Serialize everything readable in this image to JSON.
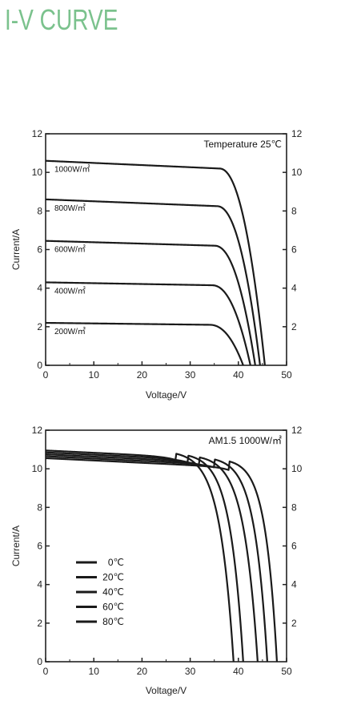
{
  "page": {
    "title": "I-V CURVE"
  },
  "chart_data": [
    {
      "type": "line",
      "annotation": "Temperature 25℃",
      "xlabel": "Voltage/V",
      "ylabel": "Current/A",
      "xlim": [
        0,
        50
      ],
      "ylim": [
        0,
        12
      ],
      "xticks": [
        0,
        10,
        20,
        30,
        40,
        50
      ],
      "yticks_left": [
        0,
        2,
        4,
        6,
        8,
        10,
        12
      ],
      "yticks_right": [
        2,
        4,
        6,
        8,
        10,
        12
      ],
      "series": [
        {
          "name": "1000W/㎡",
          "isc": 10.6,
          "knee_v": 36,
          "knee_i": 10.2,
          "voc": 45.5
        },
        {
          "name": "800W/㎡",
          "isc": 8.6,
          "knee_v": 35.5,
          "knee_i": 8.25,
          "voc": 44.5
        },
        {
          "name": "600W/㎡",
          "isc": 6.45,
          "knee_v": 35,
          "knee_i": 6.2,
          "voc": 43.5
        },
        {
          "name": "400W/㎡",
          "isc": 4.3,
          "knee_v": 34.5,
          "knee_i": 4.15,
          "voc": 42.5
        },
        {
          "name": "200W/㎡",
          "isc": 2.2,
          "knee_v": 34,
          "knee_i": 2.1,
          "voc": 41
        }
      ]
    },
    {
      "type": "line",
      "annotation": "AM1.5 1000W/㎡",
      "xlabel": "Voltage/V",
      "ylabel": "Current/A",
      "xlim": [
        0,
        50
      ],
      "ylim": [
        0,
        12
      ],
      "xticks": [
        0,
        10,
        20,
        30,
        40,
        50
      ],
      "yticks_left": [
        0,
        2,
        4,
        6,
        8,
        10,
        12
      ],
      "yticks_right": [
        2,
        4,
        6,
        8,
        10,
        12
      ],
      "series": [
        {
          "name": "0℃",
          "isc": 10.55,
          "knee_v": 38,
          "voc": 48
        },
        {
          "name": "20℃",
          "isc": 10.65,
          "knee_v": 35,
          "voc": 46
        },
        {
          "name": "40℃",
          "isc": 10.75,
          "knee_v": 32,
          "voc": 44
        },
        {
          "name": "60℃",
          "isc": 10.85,
          "knee_v": 29.5,
          "voc": 41
        },
        {
          "name": "80℃",
          "isc": 10.95,
          "knee_v": 27,
          "voc": 39
        }
      ]
    }
  ]
}
